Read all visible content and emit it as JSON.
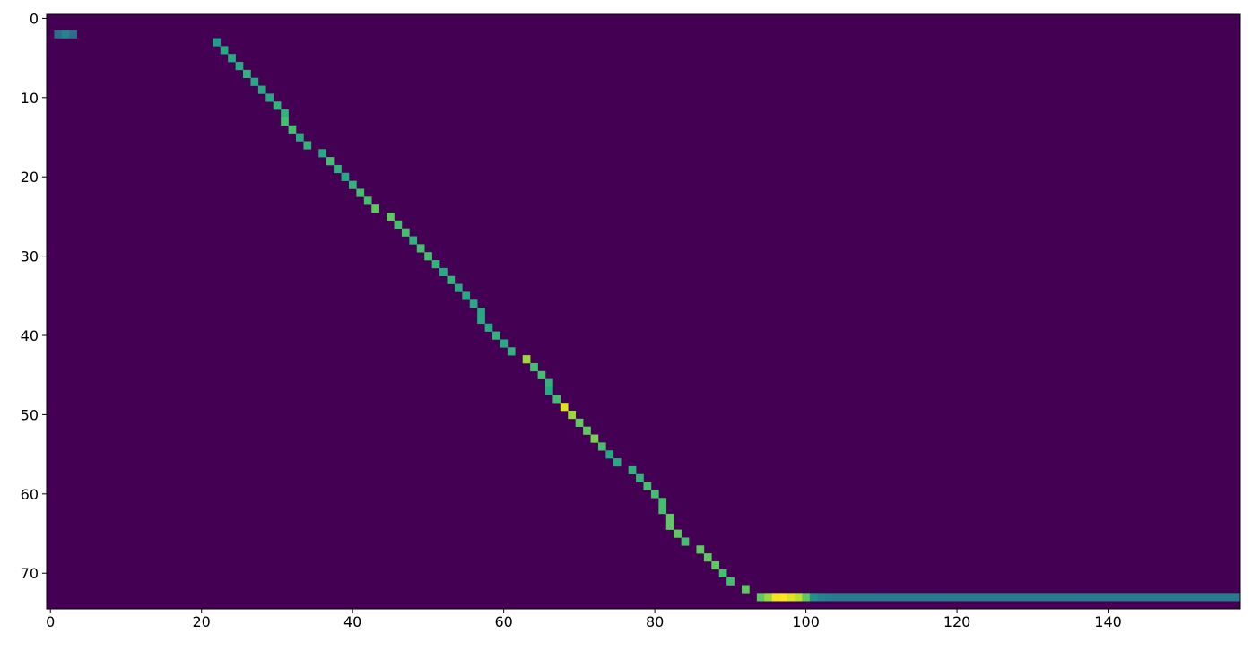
{
  "chart_data": {
    "type": "heatmap",
    "colormap": "viridis",
    "clim": [
      0,
      1
    ],
    "xlim": [
      -0.5,
      157.5
    ],
    "ylim": [
      74.5,
      -0.5
    ],
    "xticks": [
      0,
      20,
      40,
      60,
      80,
      100,
      120,
      140
    ],
    "yticks": [
      0,
      10,
      20,
      30,
      40,
      50,
      60,
      70
    ],
    "x": [
      1,
      2,
      3,
      22,
      23,
      24,
      25,
      26,
      27,
      28,
      29,
      30,
      31,
      31,
      32,
      33,
      34,
      36,
      37,
      38,
      39,
      40,
      41,
      42,
      43,
      45,
      46,
      47,
      48,
      49,
      50,
      51,
      52,
      53,
      54,
      55,
      56,
      57,
      57,
      58,
      59,
      60,
      61,
      63,
      64,
      65,
      66,
      66,
      67,
      68,
      69,
      70,
      71,
      72,
      73,
      74,
      75,
      77,
      78,
      79,
      80,
      81,
      81,
      82,
      82,
      83,
      84,
      86,
      87,
      88,
      89,
      90,
      92,
      94,
      95,
      96,
      97,
      98,
      99,
      100,
      101,
      102,
      103,
      104,
      105,
      106,
      107,
      108,
      109,
      110,
      111,
      112,
      113,
      114,
      115,
      116,
      117,
      118,
      119,
      120,
      121,
      122,
      123,
      124,
      125,
      126,
      127,
      128,
      129,
      130,
      131,
      132,
      133,
      134,
      135,
      136,
      137,
      138,
      139,
      140,
      141,
      142,
      143,
      144,
      145,
      146,
      147,
      148,
      149,
      150,
      151,
      152,
      153,
      154,
      155,
      156,
      157
    ],
    "y": [
      2,
      2,
      2,
      3,
      4,
      5,
      6,
      7,
      8,
      9,
      10,
      11,
      12,
      13,
      14,
      15,
      16,
      17,
      18,
      19,
      20,
      21,
      22,
      23,
      24,
      25,
      26,
      27,
      28,
      29,
      30,
      31,
      32,
      33,
      34,
      35,
      36,
      37,
      38,
      39,
      40,
      41,
      42,
      43,
      44,
      45,
      46,
      47,
      48,
      49,
      50,
      51,
      52,
      53,
      54,
      55,
      56,
      57,
      58,
      59,
      60,
      61,
      62,
      63,
      64,
      65,
      66,
      67,
      68,
      69,
      70,
      71,
      72,
      73,
      73,
      73,
      73,
      73,
      73,
      73,
      73,
      73,
      73,
      73,
      73,
      73,
      73,
      73,
      73,
      73,
      73,
      73,
      73,
      73,
      73,
      73,
      73,
      73,
      73,
      73,
      73,
      73,
      73,
      73,
      73,
      73,
      73,
      73,
      73,
      73,
      73,
      73,
      73,
      73,
      73,
      73,
      73,
      73,
      73,
      73,
      73,
      73,
      73,
      73,
      73,
      73,
      73,
      73,
      73,
      73,
      73,
      73,
      73,
      73,
      73,
      73,
      73
    ],
    "values": [
      0.35,
      0.45,
      0.35,
      0.55,
      0.6,
      0.6,
      0.6,
      0.65,
      0.6,
      0.6,
      0.6,
      0.65,
      0.65,
      0.7,
      0.7,
      0.6,
      0.65,
      0.6,
      0.7,
      0.65,
      0.6,
      0.65,
      0.7,
      0.7,
      0.75,
      0.75,
      0.7,
      0.7,
      0.65,
      0.7,
      0.7,
      0.65,
      0.6,
      0.65,
      0.6,
      0.6,
      0.6,
      0.6,
      0.6,
      0.6,
      0.65,
      0.6,
      0.65,
      0.85,
      0.7,
      0.7,
      0.65,
      0.6,
      0.7,
      0.95,
      0.85,
      0.75,
      0.75,
      0.8,
      0.7,
      0.6,
      0.6,
      0.65,
      0.65,
      0.7,
      0.7,
      0.7,
      0.7,
      0.75,
      0.75,
      0.75,
      0.7,
      0.75,
      0.75,
      0.75,
      0.7,
      0.7,
      0.75,
      0.75,
      0.85,
      0.98,
      1.0,
      0.95,
      0.9,
      0.75,
      0.5,
      0.45,
      0.42,
      0.4,
      0.4,
      0.4,
      0.4,
      0.4,
      0.4,
      0.4,
      0.4,
      0.4,
      0.4,
      0.4,
      0.4,
      0.4,
      0.4,
      0.4,
      0.4,
      0.4,
      0.4,
      0.4,
      0.4,
      0.4,
      0.4,
      0.4,
      0.4,
      0.4,
      0.4,
      0.4,
      0.4,
      0.4,
      0.4,
      0.4,
      0.4,
      0.4,
      0.4,
      0.4,
      0.4,
      0.4,
      0.4,
      0.4,
      0.4,
      0.4,
      0.4,
      0.4,
      0.4,
      0.4,
      0.4,
      0.4,
      0.4,
      0.4,
      0.4,
      0.4,
      0.4,
      0.4,
      0.4
    ]
  }
}
